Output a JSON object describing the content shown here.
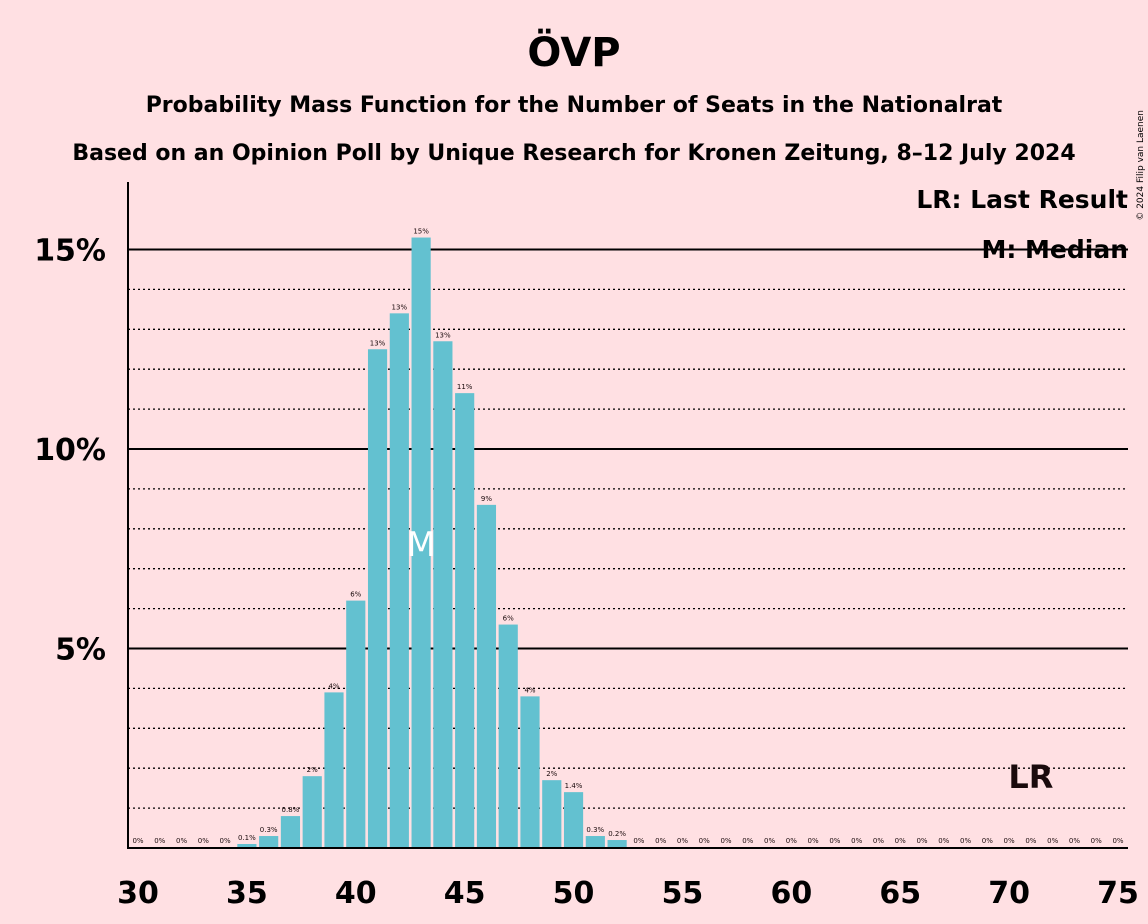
{
  "chart_data": {
    "type": "bar",
    "title": "ÖVP",
    "subtitle": "Probability Mass Function for the Number of Seats in the Nationalrat",
    "subtitle2": "Based on an Opinion Poll by Unique Research for Kronen Zeitung, 8–12 July 2024",
    "copyright": "© 2024 Filip van Laenen",
    "xlabel": "",
    "ylabel": "",
    "xlim": [
      30,
      75
    ],
    "ylim": [
      0,
      16.5
    ],
    "x_ticks": [
      30,
      35,
      40,
      45,
      50,
      55,
      60,
      65,
      70,
      75
    ],
    "y_ticks": [
      {
        "value": 5,
        "label": "5%"
      },
      {
        "value": 10,
        "label": "10%"
      },
      {
        "value": 15,
        "label": "15%"
      }
    ],
    "minor_gridlines": [
      1,
      2,
      3,
      4,
      6,
      7,
      8,
      9,
      11,
      12,
      13,
      14
    ],
    "grid": true,
    "bar_color": "#63c1d0",
    "seats": [
      30,
      31,
      32,
      33,
      34,
      35,
      36,
      37,
      38,
      39,
      40,
      41,
      42,
      43,
      44,
      45,
      46,
      47,
      48,
      49,
      50,
      51,
      52,
      53,
      54,
      55,
      56,
      57,
      58,
      59,
      60,
      61,
      62,
      63,
      64,
      65,
      66,
      67,
      68,
      69,
      70,
      71,
      72,
      73,
      74,
      75
    ],
    "values": [
      0,
      0,
      0,
      0,
      0,
      0.1,
      0.3,
      0.8,
      1.8,
      3.9,
      6.2,
      12.5,
      13.4,
      15.3,
      12.7,
      11.4,
      8.6,
      5.6,
      3.8,
      1.7,
      1.4,
      0.3,
      0.2,
      0,
      0,
      0,
      0,
      0,
      0,
      0,
      0,
      0,
      0,
      0,
      0,
      0,
      0,
      0,
      0,
      0,
      0,
      0,
      0,
      0,
      0,
      0
    ],
    "labels": [
      "0%",
      "0%",
      "0%",
      "0%",
      "0%",
      "0.1%",
      "0.3%",
      "0.8%",
      "2%",
      "4%",
      "6%",
      "13%",
      "13%",
      "15%",
      "13%",
      "11%",
      "9%",
      "6%",
      "4%",
      "2%",
      "1.4%",
      "0.3%",
      "0.2%",
      "0%",
      "0%",
      "0%",
      "0%",
      "0%",
      "0%",
      "0%",
      "0%",
      "0%",
      "0%",
      "0%",
      "0%",
      "0%",
      "0%",
      "0%",
      "0%",
      "0%",
      "0%",
      "0%",
      "0%",
      "0%",
      "0%",
      "0%"
    ],
    "median": {
      "seat": 43,
      "marker": "M"
    },
    "last_result": {
      "seat": 71,
      "marker": "LR"
    },
    "legend": [
      "LR: Last Result",
      "M: Median"
    ],
    "legend_position": "top-right"
  }
}
